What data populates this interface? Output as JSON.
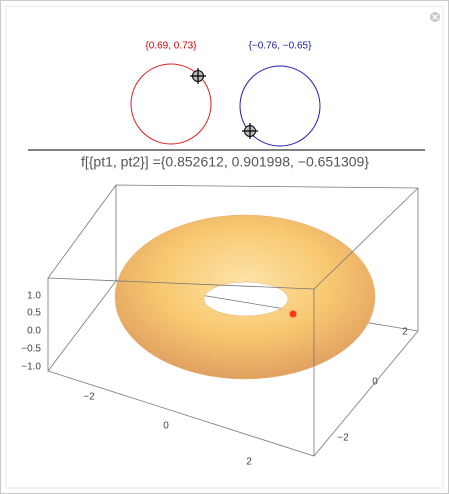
{
  "locators": {
    "pt1_label": "{0.69, 0.73}",
    "pt2_label": "{−0.76, −0.65}"
  },
  "expression": "f[{pt1, pt2}] ={0.852612, 0.901998, −0.651309}",
  "plot": {
    "z_ticks": [
      "1.0",
      "0.5",
      "0.0",
      "−0.5",
      "−1.0"
    ],
    "x_ticks": [
      "−2",
      "0",
      "2"
    ],
    "y_ticks": [
      "2",
      "0",
      "−2"
    ]
  }
}
